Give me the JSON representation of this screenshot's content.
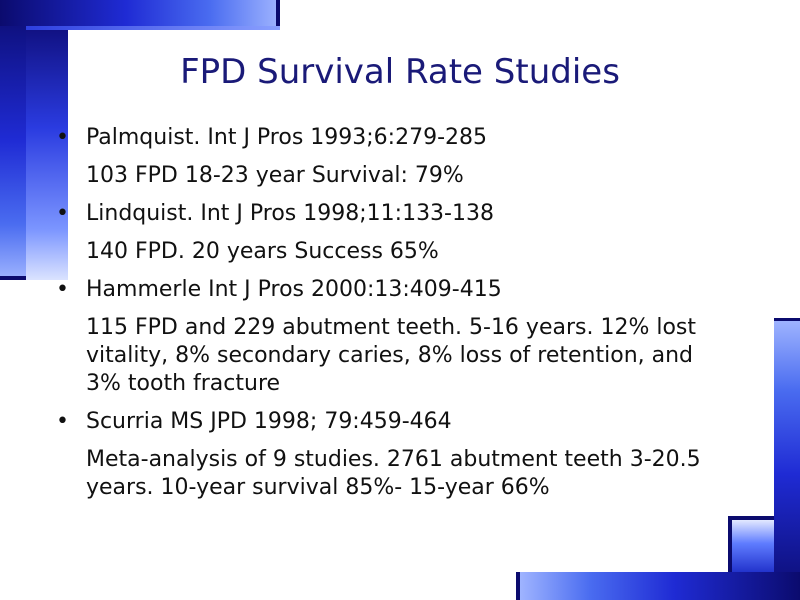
{
  "slide": {
    "title": "FPD Survival Rate Studies",
    "bullets": [
      {
        "text": "Palmquist. Int J Pros 1993;6:279-285",
        "detail": " 103 FPD 18-23 year Survival: 79%"
      },
      {
        "text": "Lindquist. Int J Pros 1998;11:133-138",
        "detail": " 140 FPD. 20 years Success 65%"
      },
      {
        "text": "Hammerle Int J Pros 2000:13:409-415",
        "detail": " 115 FPD and 229 abutment teeth. 5-16 years. 12% lost vitality, 8% secondary caries, 8% loss of retention, and 3% tooth fracture"
      },
      {
        "text": "Scurria MS JPD 1998; 79:459-464",
        "detail": "  Meta-analysis of 9 studies. 2761 abutment teeth 3-20.5 years. 10-year survival 85%- 15-year 66%"
      }
    ],
    "bullet_glyph": "•",
    "colors": {
      "title": "#1a1a78",
      "body": "#111111",
      "frame_dark": "#0b0b6e",
      "frame_mid": "#1f2bd4",
      "frame_light": "#9fb4ff"
    }
  }
}
